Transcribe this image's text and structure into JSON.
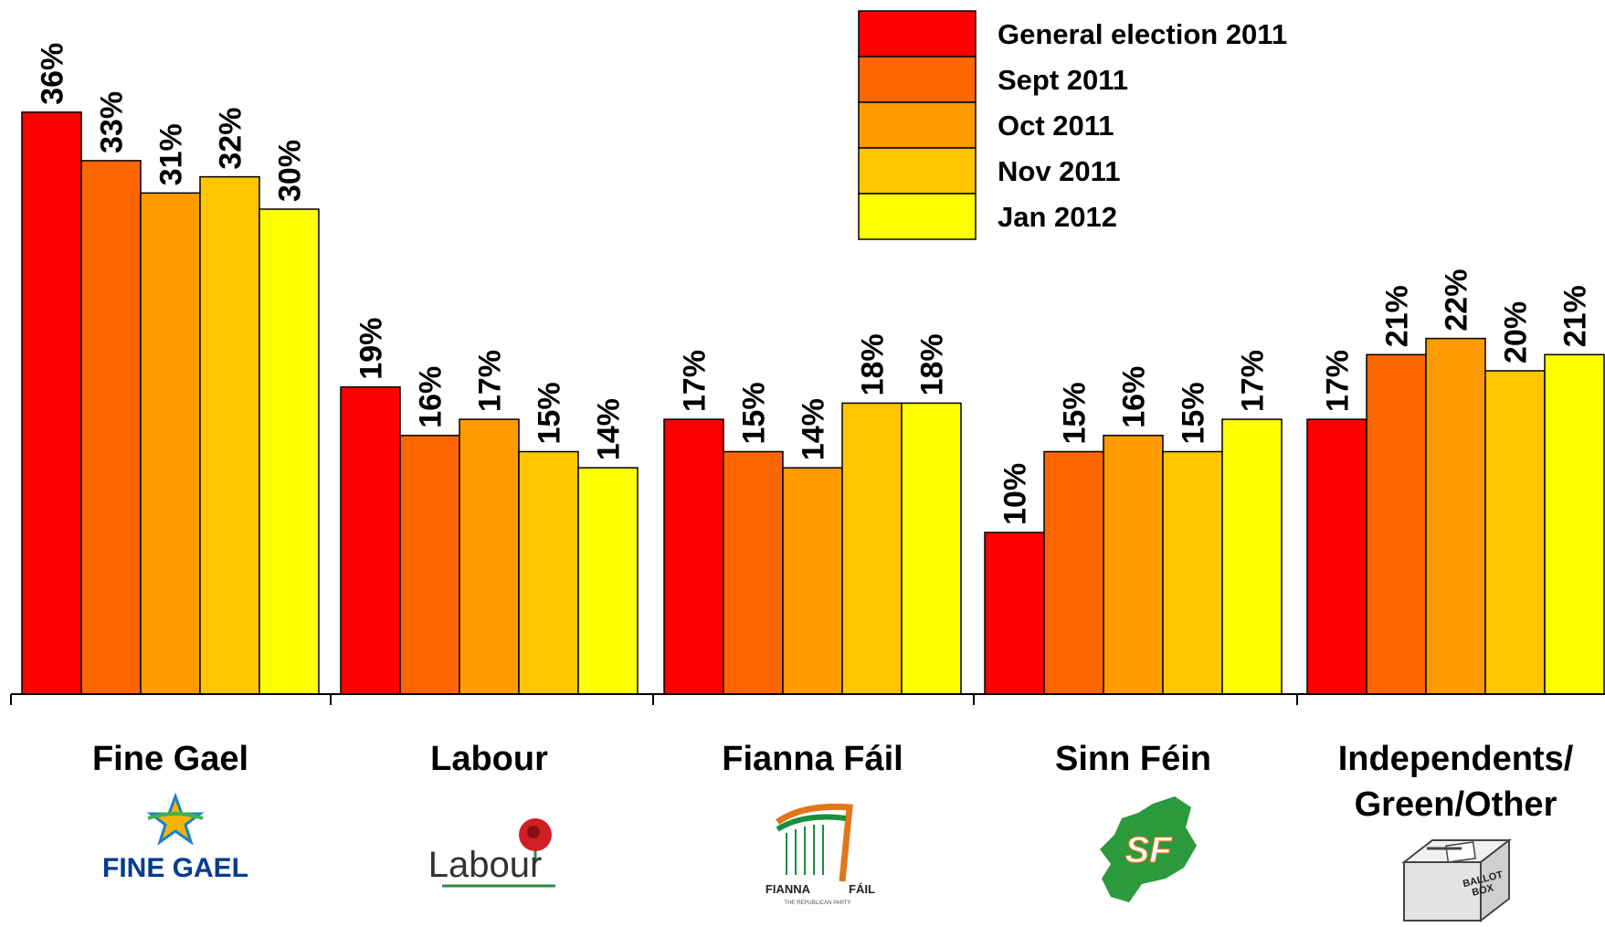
{
  "chart_data": {
    "type": "bar",
    "categories": [
      "Fine Gael",
      "Labour",
      "Fianna Fáil",
      "Sinn Féin",
      "Independents/ Green/Other"
    ],
    "category_lines": [
      [
        "Fine Gael"
      ],
      [
        "Labour"
      ],
      [
        "Fianna Fáil"
      ],
      [
        "Sinn Féin"
      ],
      [
        "Independents/",
        "Green/Other"
      ]
    ],
    "series": [
      {
        "name": "General election 2011",
        "color": "#ff0000",
        "values": [
          36,
          19,
          17,
          10,
          17
        ]
      },
      {
        "name": "Sept 2011",
        "color": "#ff6600",
        "values": [
          33,
          16,
          15,
          15,
          21
        ]
      },
      {
        "name": "Oct 2011",
        "color": "#ff9a00",
        "values": [
          31,
          17,
          14,
          16,
          22
        ]
      },
      {
        "name": "Nov 2011",
        "color": "#ffc600",
        "values": [
          32,
          15,
          18,
          15,
          20
        ]
      },
      {
        "name": "Jan 2012",
        "color": "#ffff00",
        "values": [
          30,
          14,
          18,
          17,
          21
        ]
      }
    ],
    "value_suffix": "%",
    "ylim": [
      0,
      36
    ],
    "legend_position": "top-right",
    "grid": false
  },
  "logos": {
    "fine_gael": {
      "text": "FINE GAEL",
      "color": "#003c8f",
      "icon": "star-icon"
    },
    "labour": {
      "text": "Labour",
      "color": "#333333",
      "icon": "rose-icon"
    },
    "fianna_fail": {
      "text_left": "FIANNA",
      "text_right": "FÁIL",
      "subtitle": "THE REPUBLICAN PARTY",
      "icon": "harp-icon"
    },
    "sinn_fein": {
      "text": "SF",
      "color": "#2a9a3c",
      "icon": "ireland-map-icon"
    },
    "other": {
      "line1": "BALLOT",
      "line2": "BOX",
      "icon": "ballot-box-icon"
    }
  }
}
